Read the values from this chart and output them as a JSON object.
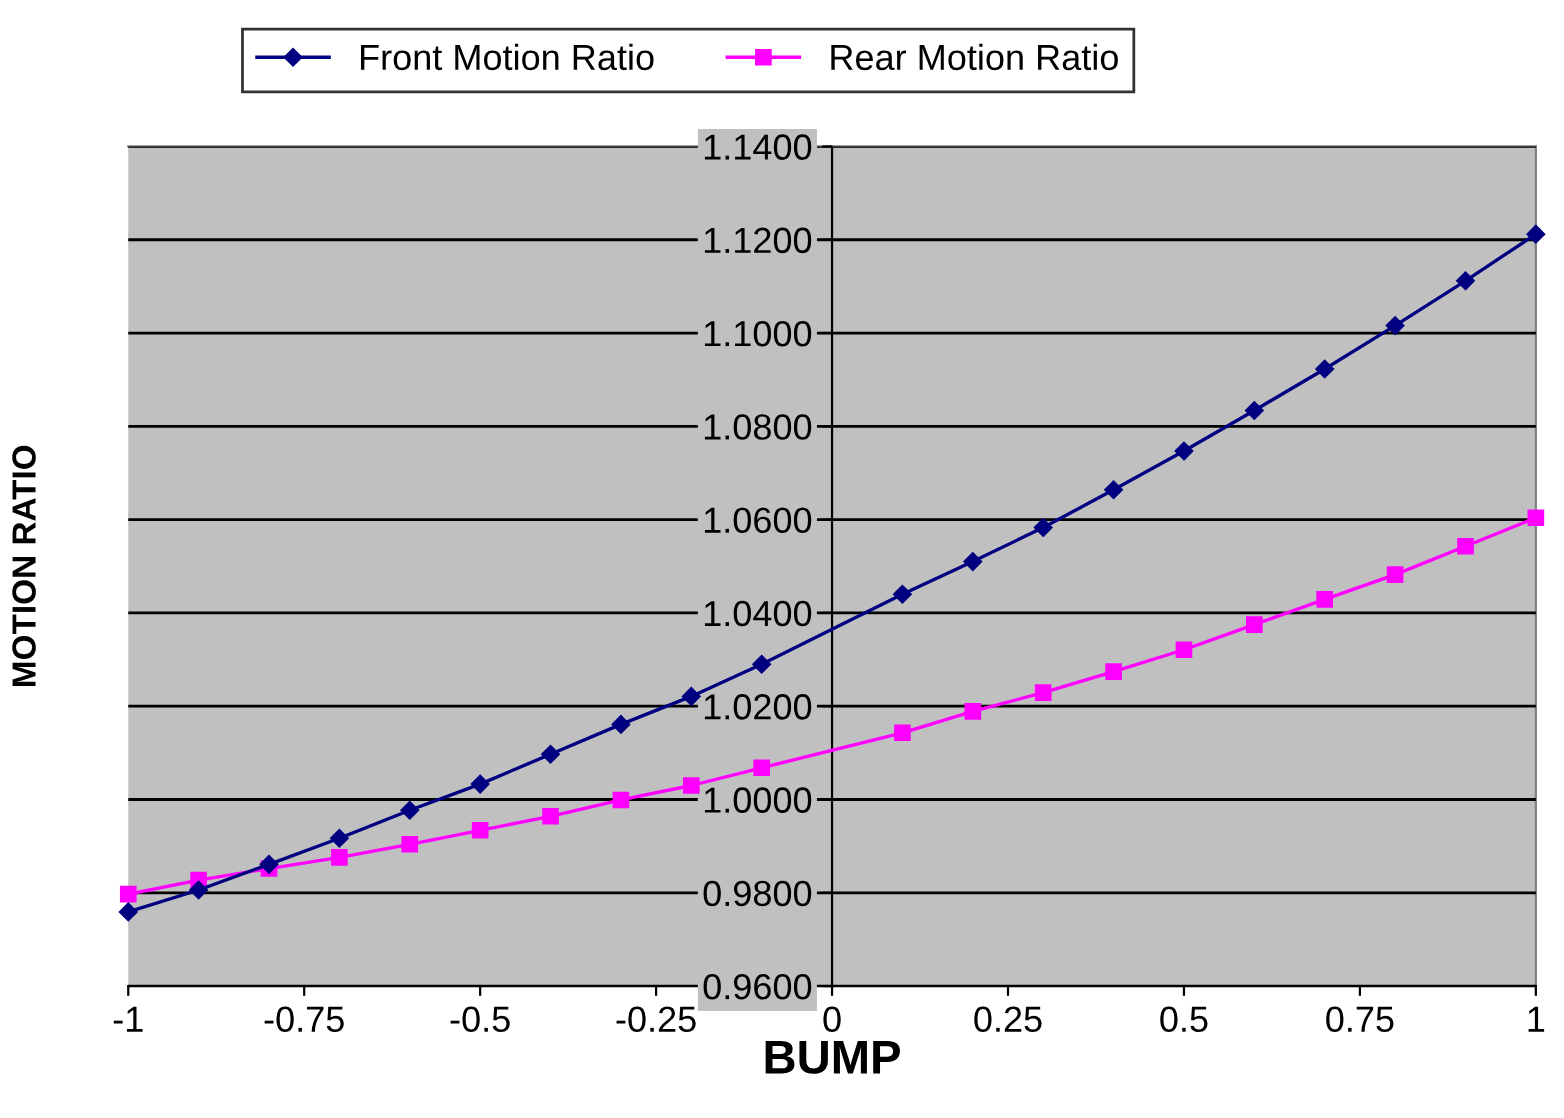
{
  "chart_data": {
    "type": "line",
    "xlabel": "BUMP",
    "ylabel": "MOTION RATIO",
    "x": [
      -1,
      -0.9,
      -0.8,
      -0.7,
      -0.6,
      -0.5,
      -0.4,
      -0.3,
      -0.2,
      -0.1,
      0.1,
      0.2,
      0.3,
      0.4,
      0.5,
      0.6,
      0.7,
      0.8,
      0.9,
      1
    ],
    "series": [
      {
        "name": "Front Motion Ratio",
        "color": "#000080",
        "marker": "diamond",
        "values": [
          0.9759,
          0.9806,
          0.9861,
          0.9917,
          0.9977,
          1.0033,
          1.0097,
          1.0161,
          1.0221,
          1.029,
          1.044,
          1.051,
          1.0583,
          1.0664,
          1.0747,
          1.0834,
          1.0923,
          1.1016,
          1.1112,
          1.1212
        ]
      },
      {
        "name": "Rear Motion Ratio",
        "color": "#ff00ff",
        "marker": "square",
        "values": [
          0.9797,
          0.9827,
          0.9852,
          0.9876,
          0.9904,
          0.9934,
          0.9964,
          0.9999,
          1.003,
          1.0068,
          1.0143,
          1.0189,
          1.0229,
          1.0274,
          1.0321,
          1.0375,
          1.0429,
          1.0482,
          1.0543,
          1.0604
        ]
      }
    ],
    "xlim": [
      -1,
      1
    ],
    "xticks": [
      -1,
      -0.75,
      -0.5,
      -0.25,
      0,
      0.25,
      0.5,
      0.75,
      1
    ],
    "ylim": [
      0.96,
      1.14
    ],
    "yticks": [
      {
        "value": 0.96,
        "label": "0.9600"
      },
      {
        "value": 0.98,
        "label": "0.9800"
      },
      {
        "value": 1.0,
        "label": "1.0000"
      },
      {
        "value": 1.02,
        "label": "1.0200"
      },
      {
        "value": 1.04,
        "label": "1.0400"
      },
      {
        "value": 1.06,
        "label": "1.0600"
      },
      {
        "value": 1.08,
        "label": "1.0800"
      },
      {
        "value": 1.1,
        "label": "1.1000"
      },
      {
        "value": 1.12,
        "label": "1.1200"
      },
      {
        "value": 1.14,
        "label": "1.1400"
      }
    ],
    "grid": "y",
    "legend": "top",
    "line_style": "solid"
  }
}
